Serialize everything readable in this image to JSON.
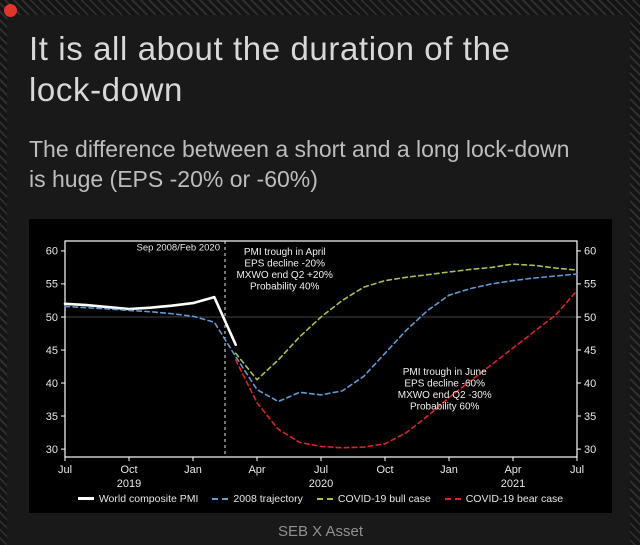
{
  "page": {
    "title": "It is all about the duration of the lock-down",
    "subtitle": "The difference between a short and a long lock-down is huge (EPS -20% or -60%)",
    "footer": "SEB X Asset",
    "accent_red": "#e1342a",
    "background": "#191919"
  },
  "chart_data": {
    "type": "line",
    "title": "",
    "xlabel": "",
    "ylabel": "",
    "background": "#000000",
    "grid": "off",
    "legend_position": "bottom",
    "x_unit": "month",
    "x_span": "Jul 2019 - Jul 2021 (monthly, index 0-24)",
    "x_tick_positions": [
      0,
      3,
      6,
      9,
      12,
      15,
      18,
      21,
      24
    ],
    "x_tick_labels": [
      "Jul",
      "Oct",
      "Jan",
      "Apr",
      "Jul",
      "Oct",
      "Jan",
      "Apr",
      "Jul"
    ],
    "year_labels": [
      {
        "label": "2019",
        "month_index": 3
      },
      {
        "label": "2020",
        "month_index": 12
      },
      {
        "label": "2021",
        "month_index": 21
      }
    ],
    "y_ticks": [
      30,
      35,
      40,
      45,
      50,
      55,
      60
    ],
    "ylim": [
      28.8,
      61.5
    ],
    "y_axis_sides": "both",
    "reference_line_y": 50,
    "vline": {
      "month_index": 7.5,
      "label": "Sep 2008/Feb 2020"
    },
    "annotations": [
      {
        "lines": [
          "PMI trough in April",
          "EPS decline -20%",
          "MXWO end Q2 +20%",
          "Probability 40%"
        ],
        "month_index": 10.3,
        "value_top": 59.4
      },
      {
        "lines": [
          "PMI trough in June",
          "EPS decline -60%",
          "MXWO end Q2 -30%",
          "Probability 60%"
        ],
        "month_index": 17.8,
        "value_top": 41.2
      }
    ],
    "series": [
      {
        "name": "World composite PMI",
        "color": "#ffffff",
        "style": "solid",
        "width": 2.6,
        "values": [
          52,
          51.8,
          51.5,
          51.2,
          51.4,
          51.7,
          52.1,
          53,
          45.8,
          null,
          null,
          null,
          null,
          null,
          null,
          null,
          null,
          null,
          null,
          null,
          null,
          null,
          null,
          null,
          null
        ]
      },
      {
        "name": "2008 trajectory",
        "color": "#5e9bd4",
        "style": "dashed",
        "width": 1.6,
        "values": [
          51.6,
          51.4,
          51.2,
          51,
          50.8,
          50.5,
          50.1,
          49.2,
          44,
          39,
          37.2,
          38.6,
          38.2,
          38.8,
          41,
          44.5,
          48,
          51,
          53.3,
          54.3,
          55,
          55.5,
          55.9,
          56.2,
          56.5
        ]
      },
      {
        "name": "COVID-19 bull case",
        "color": "#a6c34f",
        "style": "dashed",
        "width": 1.6,
        "values": [
          null,
          null,
          null,
          null,
          null,
          null,
          null,
          null,
          44.5,
          40.5,
          43.5,
          47,
          50,
          52.5,
          54.5,
          55.5,
          56,
          56.4,
          56.8,
          57.2,
          57.5,
          58,
          57.8,
          57.4,
          57.1
        ]
      },
      {
        "name": "COVID-19 bear case",
        "color": "#dd2222",
        "style": "dashed",
        "width": 1.6,
        "values": [
          null,
          null,
          null,
          null,
          null,
          null,
          null,
          null,
          43.5,
          37,
          33,
          31,
          30.4,
          30.2,
          30.3,
          30.8,
          32.5,
          35,
          37.8,
          40.3,
          42.8,
          45.3,
          47.8,
          50.3,
          54
        ]
      }
    ]
  }
}
